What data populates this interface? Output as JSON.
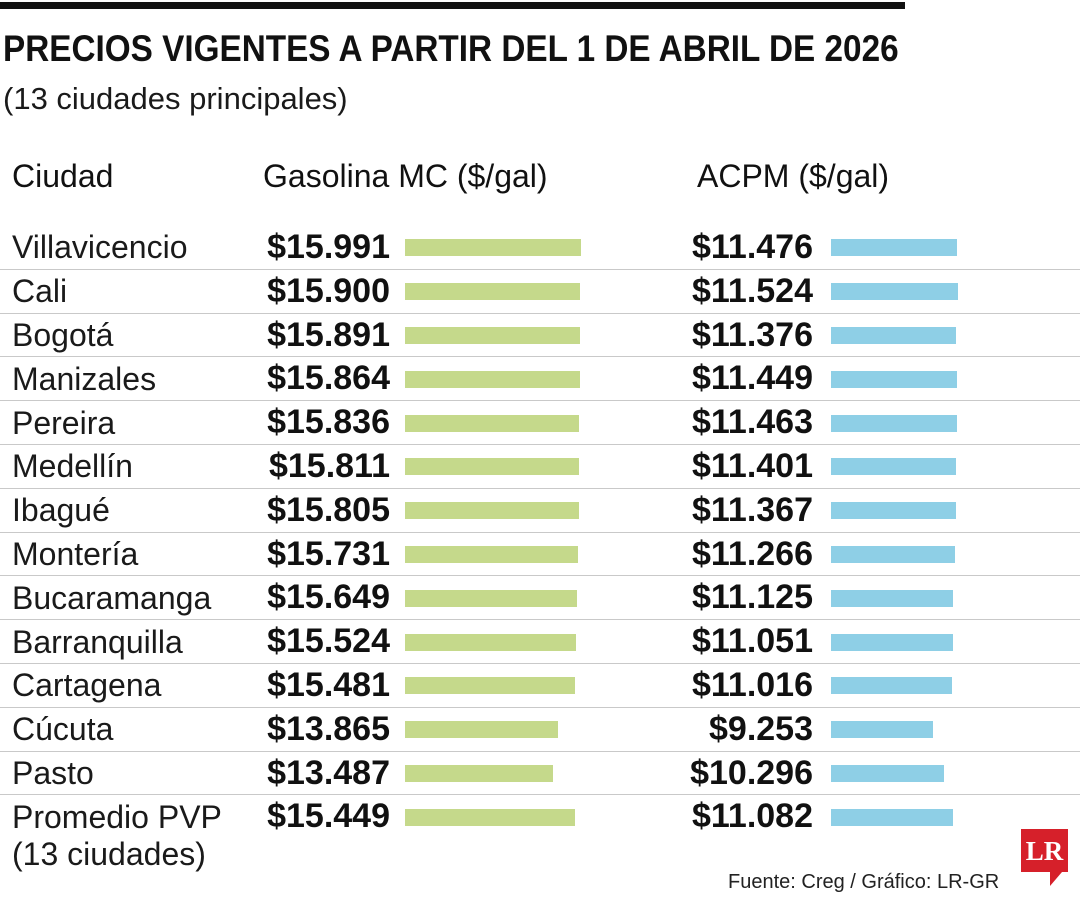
{
  "chart_data": {
    "type": "bar",
    "orientation": "horizontal",
    "title": "PRECIOS VIGENTES A PARTIR DEL 1 DE ABRIL DE 2026",
    "subtitle": "(13 ciudades principales)",
    "category_header": "Ciudad",
    "categories": [
      "Villavicencio",
      "Cali",
      "Bogotá",
      "Manizales",
      "Pereira",
      "Medellín",
      "Ibagué",
      "Montería",
      "Bucaramanga",
      "Barranquilla",
      "Cartagena",
      "Cúcuta",
      "Pasto",
      "Promedio PVP\n(13 ciudades)"
    ],
    "series": [
      {
        "name": "Gasolina MC ($/gal)",
        "color": "#c5d98b",
        "values": [
          15991,
          15900,
          15891,
          15864,
          15836,
          15811,
          15805,
          15731,
          15649,
          15524,
          15481,
          13865,
          13487,
          15449
        ],
        "labels": [
          "$15.991",
          "$15.900",
          "$15.891",
          "$15.864",
          "$15.836",
          "$15.811",
          "$15.805",
          "$15.731",
          "$15.649",
          "$15.524",
          "$15.481",
          "$13.865",
          "$13.487",
          "$15.449"
        ]
      },
      {
        "name": "ACPM ($/gal)",
        "color": "#8ecfe6",
        "values": [
          11476,
          11524,
          11376,
          11449,
          11463,
          11401,
          11367,
          11266,
          11125,
          11051,
          11016,
          9253,
          10296,
          11082
        ],
        "labels": [
          "$11.476",
          "$11.524",
          "$11.376",
          "$11.449",
          "$11.463",
          "$11.401",
          "$11.367",
          "$11.266",
          "$11.125",
          "$11.051",
          "$11.016",
          "$9.253",
          "$10.296",
          "$11.082"
        ]
      }
    ],
    "grid": false,
    "legend": "none"
  },
  "source": "Fuente: Creg / Gráfico: LR-GR",
  "logo": {
    "text": "LR",
    "color": "#d6202a"
  },
  "colors": {
    "rule": "#111111",
    "text": "#111111"
  }
}
